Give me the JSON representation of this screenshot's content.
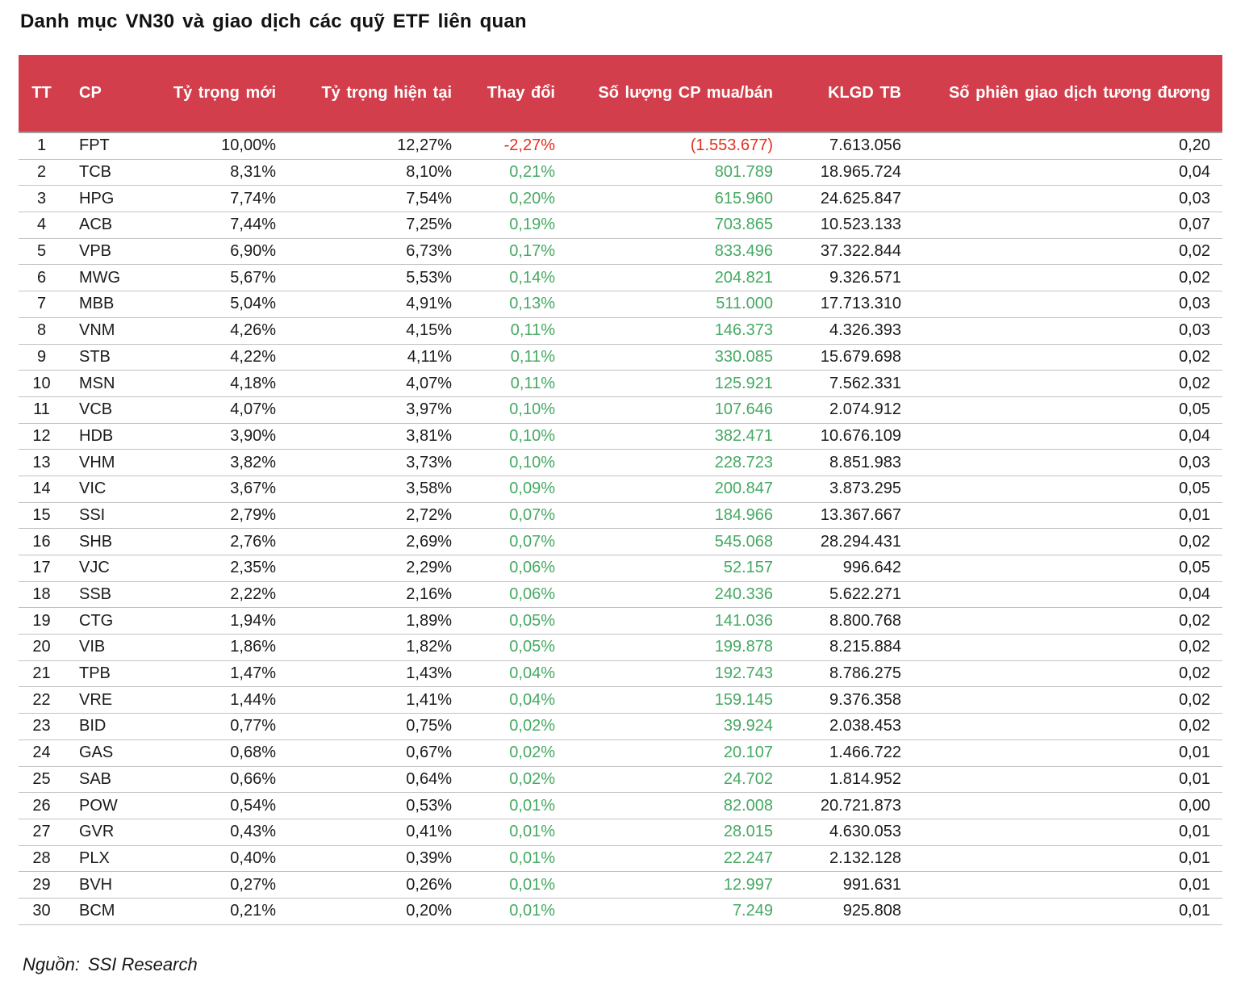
{
  "title": "Danh mục VN30 và giao dịch các quỹ ETF liên quan",
  "footer": {
    "label": "Nguồn:",
    "value": "SSI Research"
  },
  "colors": {
    "header_bg": "#d23e4b",
    "positive": "#46a963",
    "negative": "#e1301e"
  },
  "table": {
    "headers": [
      "TT",
      "CP",
      "Tỷ trọng mới",
      "Tỷ trọng hiện tại",
      "Thay đổi",
      "Số lượng CP mua/bán",
      "KLGD TB",
      "Số phiên giao dịch tương đương"
    ],
    "rows": [
      {
        "tt": "1",
        "cp": "FPT",
        "new_weight": "10,00%",
        "current_weight": "12,27%",
        "change": "-2,27%",
        "shares": "(1.553.677)",
        "avg_volume": "7.613.056",
        "sessions": "0,20",
        "trend": "down"
      },
      {
        "tt": "2",
        "cp": "TCB",
        "new_weight": "8,31%",
        "current_weight": "8,10%",
        "change": "0,21%",
        "shares": "801.789",
        "avg_volume": "18.965.724",
        "sessions": "0,04",
        "trend": "up"
      },
      {
        "tt": "3",
        "cp": "HPG",
        "new_weight": "7,74%",
        "current_weight": "7,54%",
        "change": "0,20%",
        "shares": "615.960",
        "avg_volume": "24.625.847",
        "sessions": "0,03",
        "trend": "up"
      },
      {
        "tt": "4",
        "cp": "ACB",
        "new_weight": "7,44%",
        "current_weight": "7,25%",
        "change": "0,19%",
        "shares": "703.865",
        "avg_volume": "10.523.133",
        "sessions": "0,07",
        "trend": "up"
      },
      {
        "tt": "5",
        "cp": "VPB",
        "new_weight": "6,90%",
        "current_weight": "6,73%",
        "change": "0,17%",
        "shares": "833.496",
        "avg_volume": "37.322.844",
        "sessions": "0,02",
        "trend": "up"
      },
      {
        "tt": "6",
        "cp": "MWG",
        "new_weight": "5,67%",
        "current_weight": "5,53%",
        "change": "0,14%",
        "shares": "204.821",
        "avg_volume": "9.326.571",
        "sessions": "0,02",
        "trend": "up"
      },
      {
        "tt": "7",
        "cp": "MBB",
        "new_weight": "5,04%",
        "current_weight": "4,91%",
        "change": "0,13%",
        "shares": "511.000",
        "avg_volume": "17.713.310",
        "sessions": "0,03",
        "trend": "up"
      },
      {
        "tt": "8",
        "cp": "VNM",
        "new_weight": "4,26%",
        "current_weight": "4,15%",
        "change": "0,11%",
        "shares": "146.373",
        "avg_volume": "4.326.393",
        "sessions": "0,03",
        "trend": "up"
      },
      {
        "tt": "9",
        "cp": "STB",
        "new_weight": "4,22%",
        "current_weight": "4,11%",
        "change": "0,11%",
        "shares": "330.085",
        "avg_volume": "15.679.698",
        "sessions": "0,02",
        "trend": "up"
      },
      {
        "tt": "10",
        "cp": "MSN",
        "new_weight": "4,18%",
        "current_weight": "4,07%",
        "change": "0,11%",
        "shares": "125.921",
        "avg_volume": "7.562.331",
        "sessions": "0,02",
        "trend": "up"
      },
      {
        "tt": "11",
        "cp": "VCB",
        "new_weight": "4,07%",
        "current_weight": "3,97%",
        "change": "0,10%",
        "shares": "107.646",
        "avg_volume": "2.074.912",
        "sessions": "0,05",
        "trend": "up"
      },
      {
        "tt": "12",
        "cp": "HDB",
        "new_weight": "3,90%",
        "current_weight": "3,81%",
        "change": "0,10%",
        "shares": "382.471",
        "avg_volume": "10.676.109",
        "sessions": "0,04",
        "trend": "up"
      },
      {
        "tt": "13",
        "cp": "VHM",
        "new_weight": "3,82%",
        "current_weight": "3,73%",
        "change": "0,10%",
        "shares": "228.723",
        "avg_volume": "8.851.983",
        "sessions": "0,03",
        "trend": "up"
      },
      {
        "tt": "14",
        "cp": "VIC",
        "new_weight": "3,67%",
        "current_weight": "3,58%",
        "change": "0,09%",
        "shares": "200.847",
        "avg_volume": "3.873.295",
        "sessions": "0,05",
        "trend": "up"
      },
      {
        "tt": "15",
        "cp": "SSI",
        "new_weight": "2,79%",
        "current_weight": "2,72%",
        "change": "0,07%",
        "shares": "184.966",
        "avg_volume": "13.367.667",
        "sessions": "0,01",
        "trend": "up"
      },
      {
        "tt": "16",
        "cp": "SHB",
        "new_weight": "2,76%",
        "current_weight": "2,69%",
        "change": "0,07%",
        "shares": "545.068",
        "avg_volume": "28.294.431",
        "sessions": "0,02",
        "trend": "up"
      },
      {
        "tt": "17",
        "cp": "VJC",
        "new_weight": "2,35%",
        "current_weight": "2,29%",
        "change": "0,06%",
        "shares": "52.157",
        "avg_volume": "996.642",
        "sessions": "0,05",
        "trend": "up"
      },
      {
        "tt": "18",
        "cp": "SSB",
        "new_weight": "2,22%",
        "current_weight": "2,16%",
        "change": "0,06%",
        "shares": "240.336",
        "avg_volume": "5.622.271",
        "sessions": "0,04",
        "trend": "up"
      },
      {
        "tt": "19",
        "cp": "CTG",
        "new_weight": "1,94%",
        "current_weight": "1,89%",
        "change": "0,05%",
        "shares": "141.036",
        "avg_volume": "8.800.768",
        "sessions": "0,02",
        "trend": "up"
      },
      {
        "tt": "20",
        "cp": "VIB",
        "new_weight": "1,86%",
        "current_weight": "1,82%",
        "change": "0,05%",
        "shares": "199.878",
        "avg_volume": "8.215.884",
        "sessions": "0,02",
        "trend": "up"
      },
      {
        "tt": "21",
        "cp": "TPB",
        "new_weight": "1,47%",
        "current_weight": "1,43%",
        "change": "0,04%",
        "shares": "192.743",
        "avg_volume": "8.786.275",
        "sessions": "0,02",
        "trend": "up"
      },
      {
        "tt": "22",
        "cp": "VRE",
        "new_weight": "1,44%",
        "current_weight": "1,41%",
        "change": "0,04%",
        "shares": "159.145",
        "avg_volume": "9.376.358",
        "sessions": "0,02",
        "trend": "up"
      },
      {
        "tt": "23",
        "cp": "BID",
        "new_weight": "0,77%",
        "current_weight": "0,75%",
        "change": "0,02%",
        "shares": "39.924",
        "avg_volume": "2.038.453",
        "sessions": "0,02",
        "trend": "up"
      },
      {
        "tt": "24",
        "cp": "GAS",
        "new_weight": "0,68%",
        "current_weight": "0,67%",
        "change": "0,02%",
        "shares": "20.107",
        "avg_volume": "1.466.722",
        "sessions": "0,01",
        "trend": "up"
      },
      {
        "tt": "25",
        "cp": "SAB",
        "new_weight": "0,66%",
        "current_weight": "0,64%",
        "change": "0,02%",
        "shares": "24.702",
        "avg_volume": "1.814.952",
        "sessions": "0,01",
        "trend": "up"
      },
      {
        "tt": "26",
        "cp": "POW",
        "new_weight": "0,54%",
        "current_weight": "0,53%",
        "change": "0,01%",
        "shares": "82.008",
        "avg_volume": "20.721.873",
        "sessions": "0,00",
        "trend": "up"
      },
      {
        "tt": "27",
        "cp": "GVR",
        "new_weight": "0,43%",
        "current_weight": "0,41%",
        "change": "0,01%",
        "shares": "28.015",
        "avg_volume": "4.630.053",
        "sessions": "0,01",
        "trend": "up"
      },
      {
        "tt": "28",
        "cp": "PLX",
        "new_weight": "0,40%",
        "current_weight": "0,39%",
        "change": "0,01%",
        "shares": "22.247",
        "avg_volume": "2.132.128",
        "sessions": "0,01",
        "trend": "up"
      },
      {
        "tt": "29",
        "cp": "BVH",
        "new_weight": "0,27%",
        "current_weight": "0,26%",
        "change": "0,01%",
        "shares": "12.997",
        "avg_volume": "991.631",
        "sessions": "0,01",
        "trend": "up"
      },
      {
        "tt": "30",
        "cp": "BCM",
        "new_weight": "0,21%",
        "current_weight": "0,20%",
        "change": "0,01%",
        "shares": "7.249",
        "avg_volume": "925.808",
        "sessions": "0,01",
        "trend": "up"
      }
    ]
  }
}
